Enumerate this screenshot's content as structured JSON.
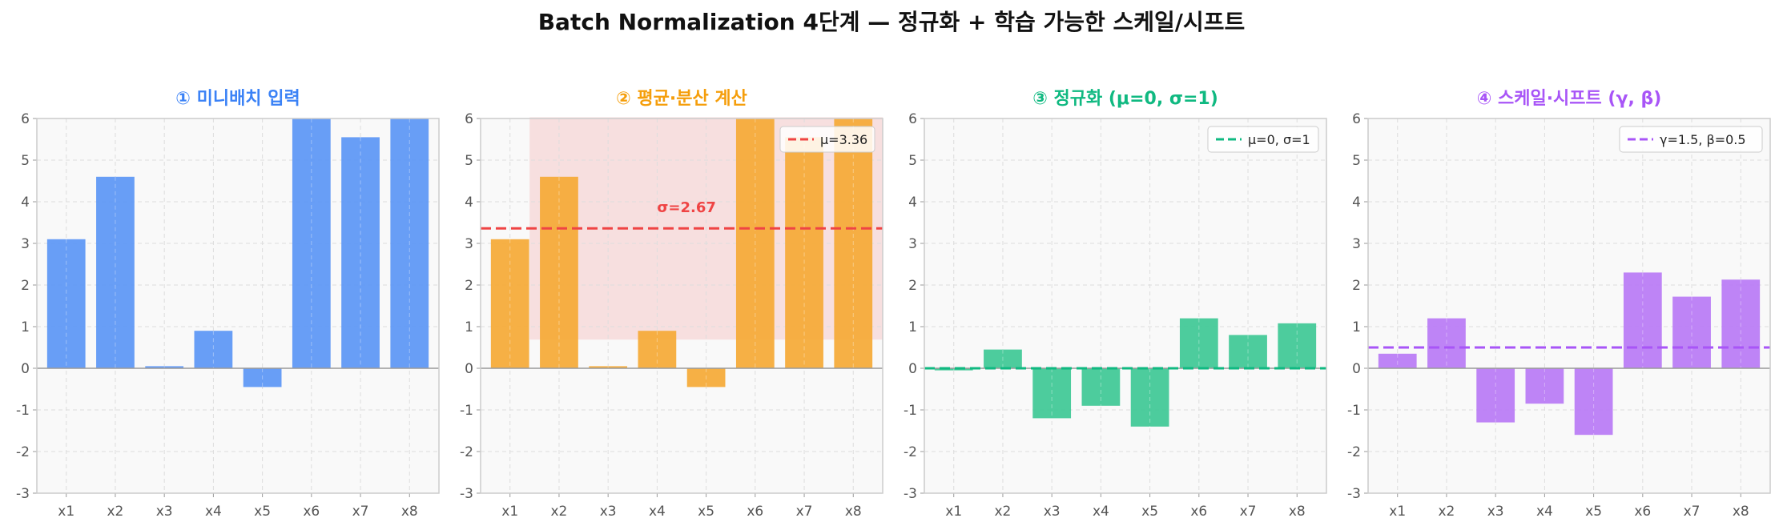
{
  "suptitle": "Batch Normalization 4단계 — 정규화 + 학습 가능한 스케일/시프트",
  "chart_data": [
    {
      "type": "bar",
      "title": "① 미니배치 입력",
      "title_color": "#3b82f6",
      "bar_color": "#5b96f5",
      "categories": [
        "x1",
        "x2",
        "x3",
        "x4",
        "x5",
        "x6",
        "x7",
        "x8"
      ],
      "values": [
        3.1,
        4.6,
        0.05,
        0.9,
        -0.45,
        6.0,
        5.55,
        6.0
      ],
      "yticks": [
        "6",
        "5",
        "4",
        "3",
        "2",
        "1",
        "0",
        "-1",
        "-2",
        "-3"
      ],
      "ylim": [
        -3,
        6
      ],
      "grid": true,
      "legend": null
    },
    {
      "type": "bar",
      "title": "② 평균·분산 계산",
      "title_color": "#f59e0b",
      "bar_color": "#f5a935",
      "categories": [
        "x1",
        "x2",
        "x3",
        "x4",
        "x5",
        "x6",
        "x7",
        "x8"
      ],
      "values": [
        3.1,
        4.6,
        0.05,
        0.9,
        -0.45,
        6.0,
        5.55,
        6.0
      ],
      "yticks": [
        "6",
        "5",
        "4",
        "3",
        "2",
        "1",
        "0",
        "-1",
        "-2",
        "-3"
      ],
      "ylim": [
        -3,
        6
      ],
      "grid": true,
      "hline": {
        "y": 3.36,
        "color": "#ef4444"
      },
      "band": {
        "from": 0.69,
        "to": 6.03,
        "x_from": 0.4,
        "x_to": 7.6,
        "color": "#f5c6c6"
      },
      "annotation": {
        "text": "σ=2.67",
        "x": 3.6,
        "y": 3.75,
        "color": "#ef4444"
      },
      "legend": {
        "label": "μ=3.36",
        "color": "#ef4444",
        "position": "top-right"
      }
    },
    {
      "type": "bar",
      "title": "③ 정규화 (μ=0, σ=1)",
      "title_color": "#10b981",
      "bar_color": "#3ec895",
      "categories": [
        "x1",
        "x2",
        "x3",
        "x4",
        "x5",
        "x6",
        "x7",
        "x8"
      ],
      "values": [
        -0.05,
        0.45,
        -1.2,
        -0.9,
        -1.4,
        1.2,
        0.8,
        1.08
      ],
      "yticks": [
        "6",
        "5",
        "4",
        "3",
        "2",
        "1",
        "0",
        "-1",
        "-2",
        "-3"
      ],
      "ylim": [
        -3,
        6
      ],
      "grid": true,
      "hline": {
        "y": 0,
        "color": "#10b981"
      },
      "legend": {
        "label": "μ=0, σ=1",
        "color": "#10b981",
        "position": "top-right"
      }
    },
    {
      "type": "bar",
      "title": "④ 스케일·시프트 (γ, β)",
      "title_color": "#a855f7",
      "bar_color": "#b87af5",
      "categories": [
        "x1",
        "x2",
        "x3",
        "x4",
        "x5",
        "x6",
        "x7",
        "x8"
      ],
      "values": [
        0.35,
        1.2,
        -1.3,
        -0.85,
        -1.6,
        2.3,
        1.72,
        2.13
      ],
      "yticks": [
        "6",
        "5",
        "4",
        "3",
        "2",
        "1",
        "0",
        "-1",
        "-2",
        "-3"
      ],
      "ylim": [
        -3,
        6
      ],
      "grid": true,
      "hline": {
        "y": 0.5,
        "color": "#a855f7"
      },
      "legend": {
        "label": "γ=1.5, β=0.5",
        "color": "#a855f7",
        "position": "top-right"
      }
    }
  ]
}
